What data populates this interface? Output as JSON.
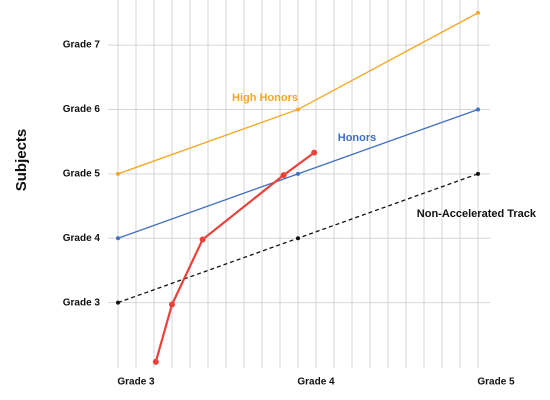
{
  "chart_data": {
    "type": "line",
    "ylabel": "Subjects",
    "xlim": [
      3,
      5
    ],
    "ylim": [
      2,
      7.7
    ],
    "xticks": [
      {
        "value": 3,
        "label": "Grade 3"
      },
      {
        "value": 4,
        "label": "Grade 4"
      },
      {
        "value": 5,
        "label": "Grade 5"
      }
    ],
    "yticks": [
      {
        "value": 3,
        "label": "Grade 3"
      },
      {
        "value": 4,
        "label": "Grade 4"
      },
      {
        "value": 5,
        "label": "Grade 5"
      },
      {
        "value": 6,
        "label": "Grade 6"
      },
      {
        "value": 7,
        "label": "Grade 7"
      }
    ],
    "x_minor_ticks": [
      3,
      3.1,
      3.2,
      3.3,
      3.4,
      3.5,
      3.6,
      3.7,
      3.8,
      3.9,
      4,
      4.1,
      4.2,
      4.3,
      4.4,
      4.5,
      4.6,
      4.7,
      4.8,
      4.9,
      5
    ],
    "grid": true,
    "series": [
      {
        "name": "High Honors",
        "color": "#f5a623",
        "x": [
          3,
          4,
          5
        ],
        "values": [
          5,
          6,
          7.5
        ]
      },
      {
        "name": "Honors",
        "color": "#3f6fbf",
        "x": [
          3,
          4,
          5
        ],
        "values": [
          4,
          5,
          6
        ]
      },
      {
        "name": "Non-Accelerated Track",
        "color": "#111111",
        "dashed": true,
        "x": [
          3,
          4,
          5
        ],
        "values": [
          3,
          4,
          5
        ]
      },
      {
        "color": "#e8423b",
        "x": [
          3.21,
          3.3,
          3.47,
          3.92,
          4.09
        ],
        "values": [
          2.08,
          2.97,
          3.98,
          4.98,
          5.33
        ]
      }
    ]
  }
}
